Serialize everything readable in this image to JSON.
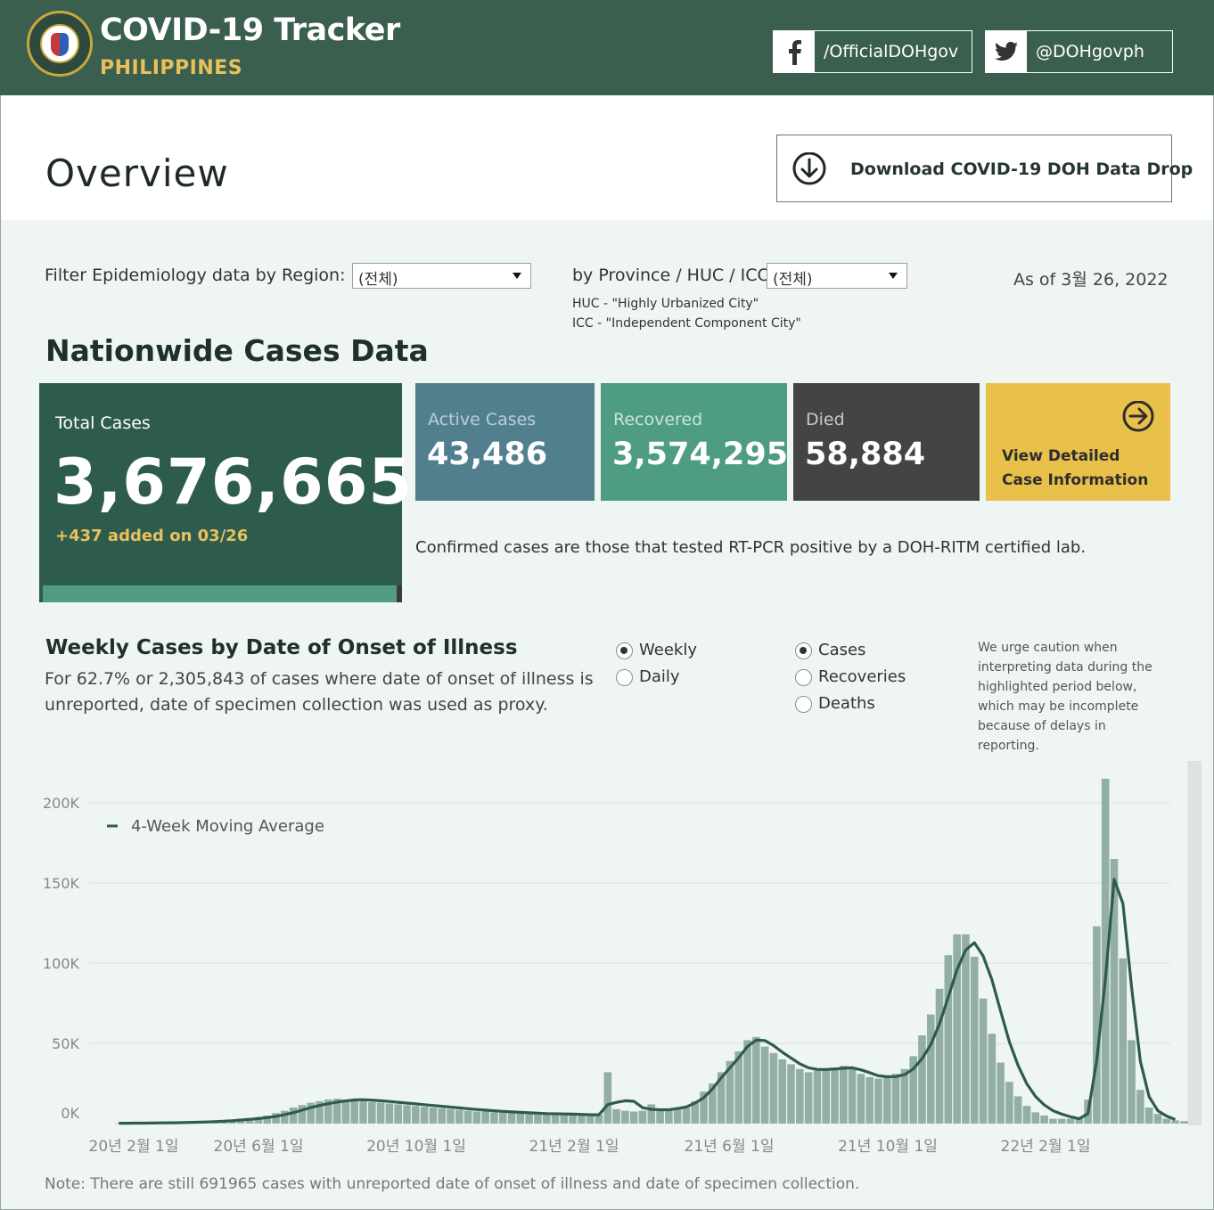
{
  "header": {
    "title": "COVID-19 Tracker",
    "subtitle": "PHILIPPINES",
    "facebook_handle": "/OfficialDOHgov",
    "twitter_handle": "@DOHgovph",
    "bg_color": "#3a5f4f",
    "accent_color": "#e9c15a"
  },
  "overview": {
    "title": "Overview",
    "download_label": "Download COVID-19 DOH Data Drop"
  },
  "filters": {
    "region_label": "Filter Epidemiology data by Region:",
    "region_value": "(전체)",
    "province_label": "by Province / HUC / ICC:",
    "province_value": "(전체)",
    "huc_note": "HUC - \"Highly Urbanized City\"",
    "icc_note": "ICC - \"Independent Component City\"",
    "as_of": "As of 3월 26, 2022"
  },
  "nationwide": {
    "title": "Nationwide Cases Data",
    "total_label": "Total Cases",
    "total_value": "3,676,665",
    "added": "+437 added on 03/26",
    "active_label": "Active Cases",
    "active_value": "43,486",
    "recovered_label": "Recovered",
    "recovered_value": "3,574,295",
    "died_label": "Died",
    "died_value": "58,884",
    "view_line1": "View Detailed",
    "view_line2": "Case Information",
    "confirmed_note": "Confirmed cases are those that tested RT-PCR positive by a DOH-RITM certified lab."
  },
  "chart_section": {
    "title": "Weekly Cases by Date of Onset of Illness",
    "description": "For 62.7% or 2,305,843 of cases where date of onset of illness is unreported, date of specimen collection was used as proxy.",
    "period_options": [
      {
        "label": "Weekly",
        "selected": true
      },
      {
        "label": "Daily",
        "selected": false
      }
    ],
    "metric_options": [
      {
        "label": "Cases",
        "selected": true
      },
      {
        "label": "Recoveries",
        "selected": false
      },
      {
        "label": "Deaths",
        "selected": false
      }
    ],
    "caution": "We urge caution when interpreting data during the highlighted period below, which may be incomplete because of delays in reporting.",
    "footnote": "Note: There are still 691965 cases with unreported date of onset of illness and date of specimen collection."
  },
  "chart_data": {
    "type": "bar",
    "title": "Weekly Cases by Date of Onset of Illness",
    "xlabel": "",
    "ylabel": "",
    "ylim": [
      0,
      200000
    ],
    "ytick_labels": [
      "0K",
      "50K",
      "100K",
      "150K",
      "200K"
    ],
    "ytick_values": [
      0,
      50000,
      100000,
      150000,
      200000
    ],
    "xtick_labels": [
      "20년 2월 1일",
      "20년 6월 1일",
      "20년 10월 1일",
      "21년 2월 1일",
      "21년 6월 1일",
      "21년 10월 1일",
      "22년 2월 1일"
    ],
    "xtick_dates": [
      "2020-02-01",
      "2020-06-01",
      "2020-10-01",
      "2021-02-01",
      "2021-06-01",
      "2021-10-01",
      "2022-02-01"
    ],
    "grid": true,
    "legend_position": "top-left",
    "highlight_period": "last week (incomplete reporting)",
    "series": [
      {
        "name": "",
        "kind": "bar",
        "color": "#93afa3",
        "start_date": "2020-01-20",
        "week_values": [
          200,
          300,
          300,
          400,
          500,
          600,
          700,
          800,
          1000,
          1200,
          1500,
          1800,
          2200,
          2500,
          3000,
          3500,
          4000,
          5000,
          6500,
          8000,
          10000,
          11500,
          13000,
          14000,
          15000,
          15500,
          15000,
          14000,
          14000,
          13500,
          13000,
          12500,
          12000,
          11500,
          11000,
          10500,
          10000,
          9500,
          9000,
          8500,
          8000,
          7500,
          7500,
          7000,
          7000,
          6500,
          6500,
          6000,
          6000,
          6000,
          6000,
          5500,
          5500,
          5500,
          5500,
          5500,
          32000,
          9000,
          8000,
          7500,
          8000,
          12000,
          8000,
          8500,
          9000,
          10000,
          14000,
          20000,
          25000,
          32000,
          39000,
          45000,
          52000,
          54000,
          48000,
          44000,
          40000,
          37000,
          34000,
          32000,
          33000,
          34000,
          35000,
          36000,
          35000,
          31000,
          29000,
          28000,
          29000,
          31000,
          34000,
          42000,
          55000,
          68000,
          84000,
          105000,
          118000,
          118000,
          104000,
          78000,
          56000,
          38000,
          26000,
          17000,
          11000,
          7000,
          5000,
          3000,
          3000,
          3000,
          3000,
          15000,
          123000,
          215000,
          165000,
          103000,
          52000,
          21000,
          10000,
          6000,
          3000,
          2000,
          1500
        ]
      },
      {
        "name": "4-Week Moving Average",
        "kind": "line",
        "color": "#2e5b4c",
        "start_date": "2020-01-20",
        "week_values": [
          200,
          250,
          270,
          300,
          350,
          420,
          500,
          570,
          700,
          850,
          1020,
          1250,
          1500,
          1800,
          2200,
          2600,
          3100,
          3700,
          4500,
          5600,
          6800,
          8400,
          10000,
          11300,
          12400,
          13400,
          14100,
          14700,
          14900,
          14600,
          14200,
          13800,
          13300,
          12800,
          12300,
          11800,
          11300,
          10800,
          10300,
          9800,
          9300,
          8800,
          8400,
          8000,
          7600,
          7300,
          7000,
          6700,
          6500,
          6200,
          6100,
          6000,
          5900,
          5700,
          5500,
          5500,
          11800,
          13200,
          14200,
          13900,
          9900,
          8900,
          8600,
          8600,
          9400,
          10400,
          12800,
          16100,
          21600,
          28500,
          34700,
          41000,
          48000,
          52000,
          51800,
          48600,
          44500,
          40900,
          37300,
          34800,
          33800,
          33700,
          34000,
          34500,
          34800,
          33500,
          31700,
          29800,
          29200,
          29300,
          30500,
          34100,
          40500,
          49300,
          62100,
          78700,
          95800,
          108200,
          112800,
          104500,
          89800,
          70100,
          51000,
          36200,
          24800,
          16900,
          11600,
          8000,
          5900,
          4200,
          3000,
          6200,
          39300,
          90600,
          152200,
          137300,
          84800,
          38800,
          16700,
          8000,
          4700,
          2500
        ]
      }
    ]
  }
}
